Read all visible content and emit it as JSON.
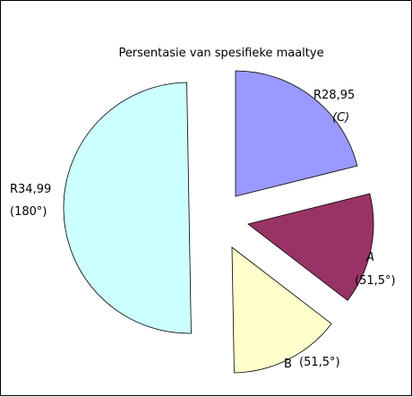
{
  "chart_data": {
    "type": "pie",
    "title": "Persentasie van spesifieke maaltye",
    "slices": [
      {
        "name": "C",
        "angle_degrees": 76,
        "price_label": "R28,95",
        "category_label": "(C)",
        "color": "#9999ff"
      },
      {
        "name": "A",
        "angle_degrees": 51.5,
        "price_label": "(51,5°)",
        "category_label": "A",
        "color": "#993366"
      },
      {
        "name": "B",
        "angle_degrees": 51.5,
        "price_label": "(51,5°)",
        "category_label": "B",
        "color": "#ffffcc"
      },
      {
        "name": "R34,99",
        "angle_degrees": 180,
        "price_label": "R34,99",
        "category_label": "(180°)",
        "color": "#ccffff"
      }
    ],
    "legend": false,
    "exploded": true
  }
}
